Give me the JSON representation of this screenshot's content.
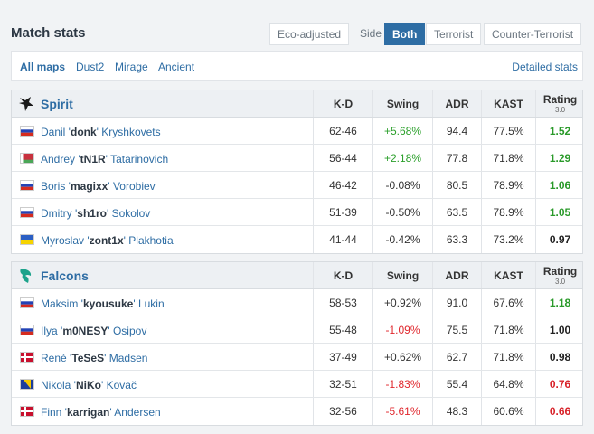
{
  "header": {
    "title": "Match stats",
    "toggles": [
      "Eco-adjusted"
    ],
    "side_label": "Side",
    "sides": [
      "Both",
      "Terrorist",
      "Counter-Terrorist"
    ]
  },
  "maps": {
    "tabs": [
      "All maps",
      "Dust2",
      "Mirage",
      "Ancient"
    ],
    "detailed": "Detailed stats"
  },
  "columns": [
    "K-D",
    "Swing",
    "ADR",
    "KAST",
    "Rating"
  ],
  "rating_version": "3.0",
  "teams": [
    {
      "name": "Spirit",
      "players": [
        {
          "pre": "Danil '",
          "nick": "donk",
          "post": "' Kryshkovets",
          "kd": "62-46",
          "swing": "+5.68%",
          "adr": "94.4",
          "kast": "77.5%",
          "rating": "1.52"
        },
        {
          "pre": "Andrey '",
          "nick": "tN1R",
          "post": "' Tatarinovich",
          "kd": "56-44",
          "swing": "+2.18%",
          "adr": "77.8",
          "kast": "71.8%",
          "rating": "1.29"
        },
        {
          "pre": "Boris '",
          "nick": "magixx",
          "post": "' Vorobiev",
          "kd": "46-42",
          "swing": "-0.08%",
          "adr": "80.5",
          "kast": "78.9%",
          "rating": "1.06"
        },
        {
          "pre": "Dmitry '",
          "nick": "sh1ro",
          "post": "' Sokolov",
          "kd": "51-39",
          "swing": "-0.50%",
          "adr": "63.5",
          "kast": "78.9%",
          "rating": "1.05"
        },
        {
          "pre": "Myroslav '",
          "nick": "zont1x",
          "post": "' Plakhotia",
          "kd": "41-44",
          "swing": "-0.42%",
          "adr": "63.3",
          "kast": "73.2%",
          "rating": "0.97"
        }
      ]
    },
    {
      "name": "Falcons",
      "players": [
        {
          "pre": "Maksim '",
          "nick": "kyousuke",
          "post": "' Lukin",
          "kd": "58-53",
          "swing": "+0.92%",
          "adr": "91.0",
          "kast": "67.6%",
          "rating": "1.18"
        },
        {
          "pre": "Ilya '",
          "nick": "m0NESY",
          "post": "' Osipov",
          "kd": "55-48",
          "swing": "-1.09%",
          "adr": "75.5",
          "kast": "71.8%",
          "rating": "1.00"
        },
        {
          "pre": "René '",
          "nick": "TeSeS",
          "post": "' Madsen",
          "kd": "37-49",
          "swing": "+0.62%",
          "adr": "62.7",
          "kast": "71.8%",
          "rating": "0.98"
        },
        {
          "pre": "Nikola '",
          "nick": "NiKo",
          "post": "' Kovač",
          "kd": "32-51",
          "swing": "-1.83%",
          "adr": "55.4",
          "kast": "64.8%",
          "rating": "0.76"
        },
        {
          "pre": "Finn '",
          "nick": "karrigan",
          "post": "' Andersen",
          "kd": "32-56",
          "swing": "-5.61%",
          "adr": "48.3",
          "kast": "60.6%",
          "rating": "0.66"
        }
      ]
    }
  ]
}
